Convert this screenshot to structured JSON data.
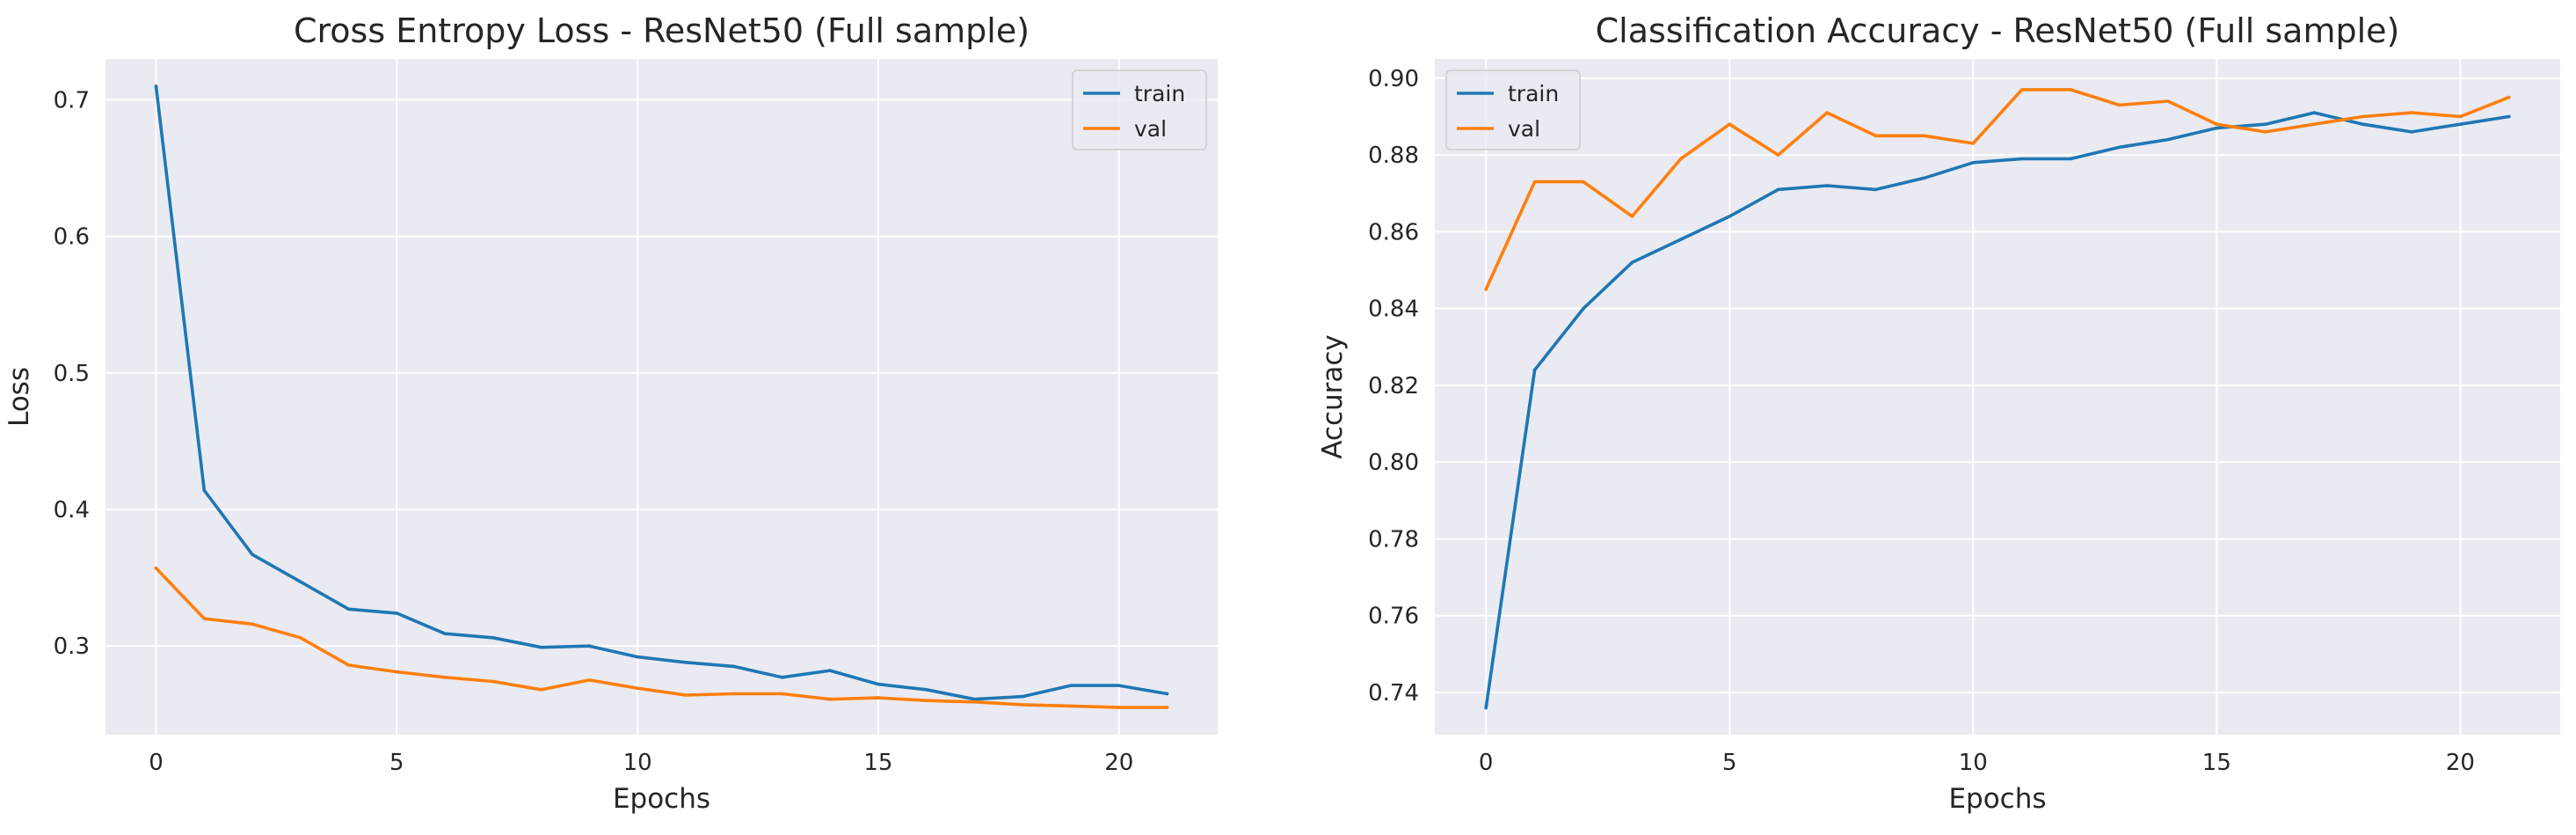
{
  "colors": {
    "train": "#1f77b4",
    "val": "#ff7f0e",
    "plot_bg": "#eaeaf2",
    "grid": "#ffffff",
    "text": "#262626"
  },
  "chart_data": [
    {
      "type": "line",
      "title": "Cross Entropy Loss - ResNet50 (Full sample)",
      "xlabel": "Epochs",
      "ylabel": "Loss",
      "x": [
        0,
        1,
        2,
        3,
        4,
        5,
        6,
        7,
        8,
        9,
        10,
        11,
        12,
        13,
        14,
        15,
        16,
        17,
        18,
        19,
        20,
        21
      ],
      "xlim": [
        -1.05,
        22.05
      ],
      "ylim": [
        0.235,
        0.73
      ],
      "xticks": [
        0,
        5,
        10,
        15,
        20
      ],
      "xtick_labels": [
        "0",
        "5",
        "10",
        "15",
        "20"
      ],
      "yticks": [
        0.3,
        0.4,
        0.5,
        0.6,
        0.7
      ],
      "ytick_labels": [
        "0.3",
        "0.4",
        "0.5",
        "0.6",
        "0.7"
      ],
      "grid": true,
      "legend_position": "top-right",
      "series": [
        {
          "name": "train",
          "color": "#1f77b4",
          "values": [
            0.71,
            0.414,
            0.367,
            0.347,
            0.327,
            0.324,
            0.309,
            0.306,
            0.299,
            0.3,
            0.292,
            0.288,
            0.285,
            0.277,
            0.282,
            0.272,
            0.268,
            0.261,
            0.263,
            0.271,
            0.271,
            0.265
          ]
        },
        {
          "name": "val",
          "color": "#ff7f0e",
          "values": [
            0.357,
            0.32,
            0.316,
            0.306,
            0.286,
            0.281,
            0.277,
            0.274,
            0.268,
            0.275,
            0.269,
            0.264,
            0.265,
            0.265,
            0.261,
            0.262,
            0.26,
            0.259,
            0.257,
            0.256,
            0.255,
            0.255
          ]
        }
      ]
    },
    {
      "type": "line",
      "title": "Classification Accuracy - ResNet50 (Full sample)",
      "xlabel": "Epochs",
      "ylabel": "Accuracy",
      "x": [
        0,
        1,
        2,
        3,
        4,
        5,
        6,
        7,
        8,
        9,
        10,
        11,
        12,
        13,
        14,
        15,
        16,
        17,
        18,
        19,
        20,
        21
      ],
      "xlim": [
        -1.05,
        22.05
      ],
      "ylim": [
        0.729,
        0.905
      ],
      "xticks": [
        0,
        5,
        10,
        15,
        20
      ],
      "xtick_labels": [
        "0",
        "5",
        "10",
        "15",
        "20"
      ],
      "yticks": [
        0.74,
        0.76,
        0.78,
        0.8,
        0.82,
        0.84,
        0.86,
        0.88,
        0.9
      ],
      "ytick_labels": [
        "0.74",
        "0.76",
        "0.78",
        "0.80",
        "0.82",
        "0.84",
        "0.86",
        "0.88",
        "0.90"
      ],
      "grid": true,
      "legend_position": "top-left",
      "series": [
        {
          "name": "train",
          "color": "#1f77b4",
          "values": [
            0.736,
            0.824,
            0.84,
            0.852,
            0.858,
            0.864,
            0.871,
            0.872,
            0.871,
            0.874,
            0.878,
            0.879,
            0.879,
            0.882,
            0.884,
            0.887,
            0.888,
            0.891,
            0.888,
            0.886,
            0.888,
            0.89
          ]
        },
        {
          "name": "val",
          "color": "#ff7f0e",
          "values": [
            0.845,
            0.873,
            0.873,
            0.864,
            0.879,
            0.888,
            0.88,
            0.891,
            0.885,
            0.885,
            0.883,
            0.897,
            0.897,
            0.893,
            0.894,
            0.888,
            0.886,
            0.888,
            0.89,
            0.891,
            0.89,
            0.895
          ]
        }
      ]
    }
  ]
}
